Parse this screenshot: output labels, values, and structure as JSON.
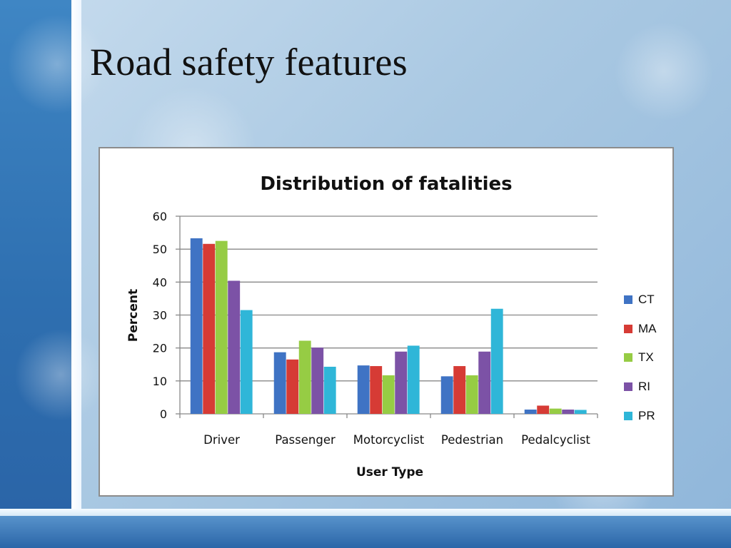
{
  "slide": {
    "title": "Road safety features"
  },
  "colors": {
    "CT": "#3f73c4",
    "MA": "#d63b35",
    "TX": "#96cc44",
    "RI": "#7c52a6",
    "PR": "#2fb6d8",
    "grid": "#888888",
    "axis": "#888888"
  },
  "chart_data": {
    "type": "bar",
    "title": "Distribution of fatalities",
    "xlabel": "User Type",
    "ylabel": "Percent",
    "ylim": [
      0,
      60
    ],
    "yticks": [
      0,
      10,
      20,
      30,
      40,
      50,
      60
    ],
    "categories": [
      "Driver",
      "Passenger",
      "Motorcyclist",
      "Pedestrian",
      "Pedalcyclist"
    ],
    "series": [
      {
        "name": "CT",
        "values": [
          53.3,
          18.7,
          14.7,
          11.4,
          1.3
        ]
      },
      {
        "name": "MA",
        "values": [
          51.6,
          16.5,
          14.5,
          14.5,
          2.5
        ]
      },
      {
        "name": "TX",
        "values": [
          52.5,
          22.2,
          11.7,
          11.7,
          1.6
        ]
      },
      {
        "name": "RI",
        "values": [
          40.4,
          20.1,
          18.9,
          18.9,
          1.3
        ]
      },
      {
        "name": "PR",
        "values": [
          31.5,
          14.3,
          20.7,
          31.9,
          1.2
        ]
      }
    ],
    "grid": true,
    "legend": "right"
  }
}
